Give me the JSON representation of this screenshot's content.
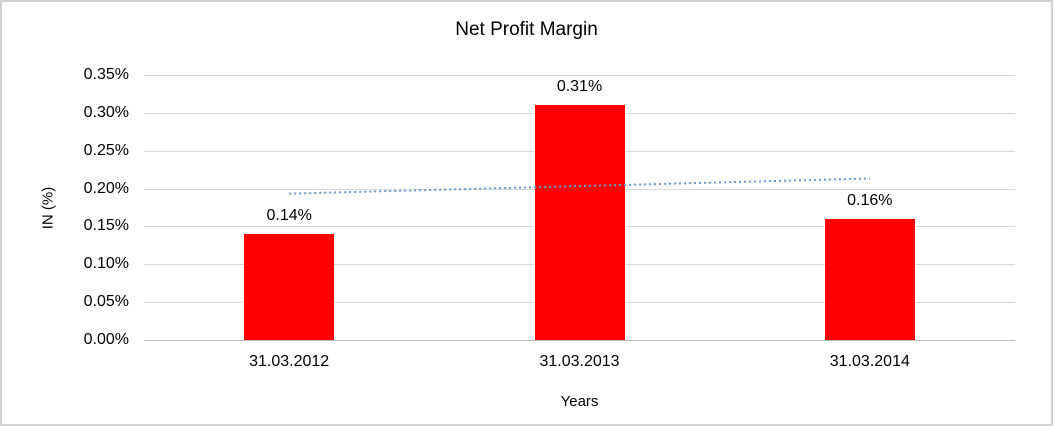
{
  "chart_data": {
    "type": "bar",
    "title": "Net Profit Margin",
    "xlabel": "Years",
    "ylabel": "IN (%)",
    "categories": [
      "31.03.2012",
      "31.03.2013",
      "31.03.2014"
    ],
    "values": [
      0.14,
      0.31,
      0.16
    ],
    "data_labels": [
      "0.14%",
      "0.31%",
      "0.16%"
    ],
    "ylim": [
      0,
      0.35
    ],
    "ytick_step": 0.05,
    "ytick_labels": [
      "0.00%",
      "0.05%",
      "0.10%",
      "0.15%",
      "0.20%",
      "0.25%",
      "0.30%",
      "0.35%"
    ],
    "grid": true,
    "legend": "none",
    "bar_color": "#ff0000",
    "gridline_color": "#d9d9d9",
    "axis_line_color": "#bfbfbf",
    "trendline": {
      "type": "linear",
      "style": "dotted",
      "color": "#6b9bd2",
      "start_value": 0.1933,
      "end_value": 0.2133
    }
  }
}
